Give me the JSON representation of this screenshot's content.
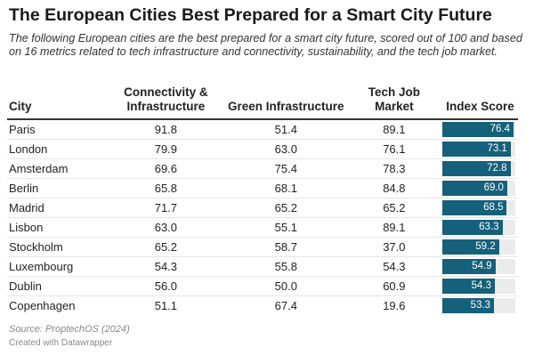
{
  "title": "The European Cities Best Prepared for a Smart City Future",
  "subtitle": "The following European cities are the best prepared for a smart city future, scored out of 100 and based on 16 metrics related to tech infrastructure and connectivity, sustainability, and the tech job market.",
  "source": "Source: ProptechOS (2024)",
  "credit": "Created with Datawrapper",
  "colors": {
    "bar": "#15607a",
    "track": "#ebebeb"
  },
  "chart_data": {
    "type": "table",
    "columns": [
      "City",
      "Connectivity & Infrastructure",
      "Green Infrastructure",
      "Tech Job Market",
      "Index Score"
    ],
    "rows": [
      {
        "city": "Paris",
        "connectivity": "91.8",
        "green": "51.4",
        "tech": "89.1",
        "index": "76.4"
      },
      {
        "city": "London",
        "connectivity": "79.9",
        "green": "63.0",
        "tech": "76.1",
        "index": "73.1"
      },
      {
        "city": "Amsterdam",
        "connectivity": "69.6",
        "green": "75.4",
        "tech": "78.3",
        "index": "72.8"
      },
      {
        "city": "Berlin",
        "connectivity": "65.8",
        "green": "68.1",
        "tech": "84.8",
        "index": "69.0"
      },
      {
        "city": "Madrid",
        "connectivity": "71.7",
        "green": "65.2",
        "tech": "65.2",
        "index": "68.5"
      },
      {
        "city": "Lisbon",
        "connectivity": "63.0",
        "green": "55.1",
        "tech": "89.1",
        "index": "63.3"
      },
      {
        "city": "Stockholm",
        "connectivity": "65.2",
        "green": "58.7",
        "tech": "37.0",
        "index": "59.2"
      },
      {
        "city": "Luxembourg",
        "connectivity": "54.3",
        "green": "55.8",
        "tech": "54.3",
        "index": "54.9"
      },
      {
        "city": "Dublin",
        "connectivity": "56.0",
        "green": "50.0",
        "tech": "60.9",
        "index": "54.3"
      },
      {
        "city": "Copenhagen",
        "connectivity": "51.1",
        "green": "67.4",
        "tech": "19.6",
        "index": "53.3"
      }
    ]
  }
}
